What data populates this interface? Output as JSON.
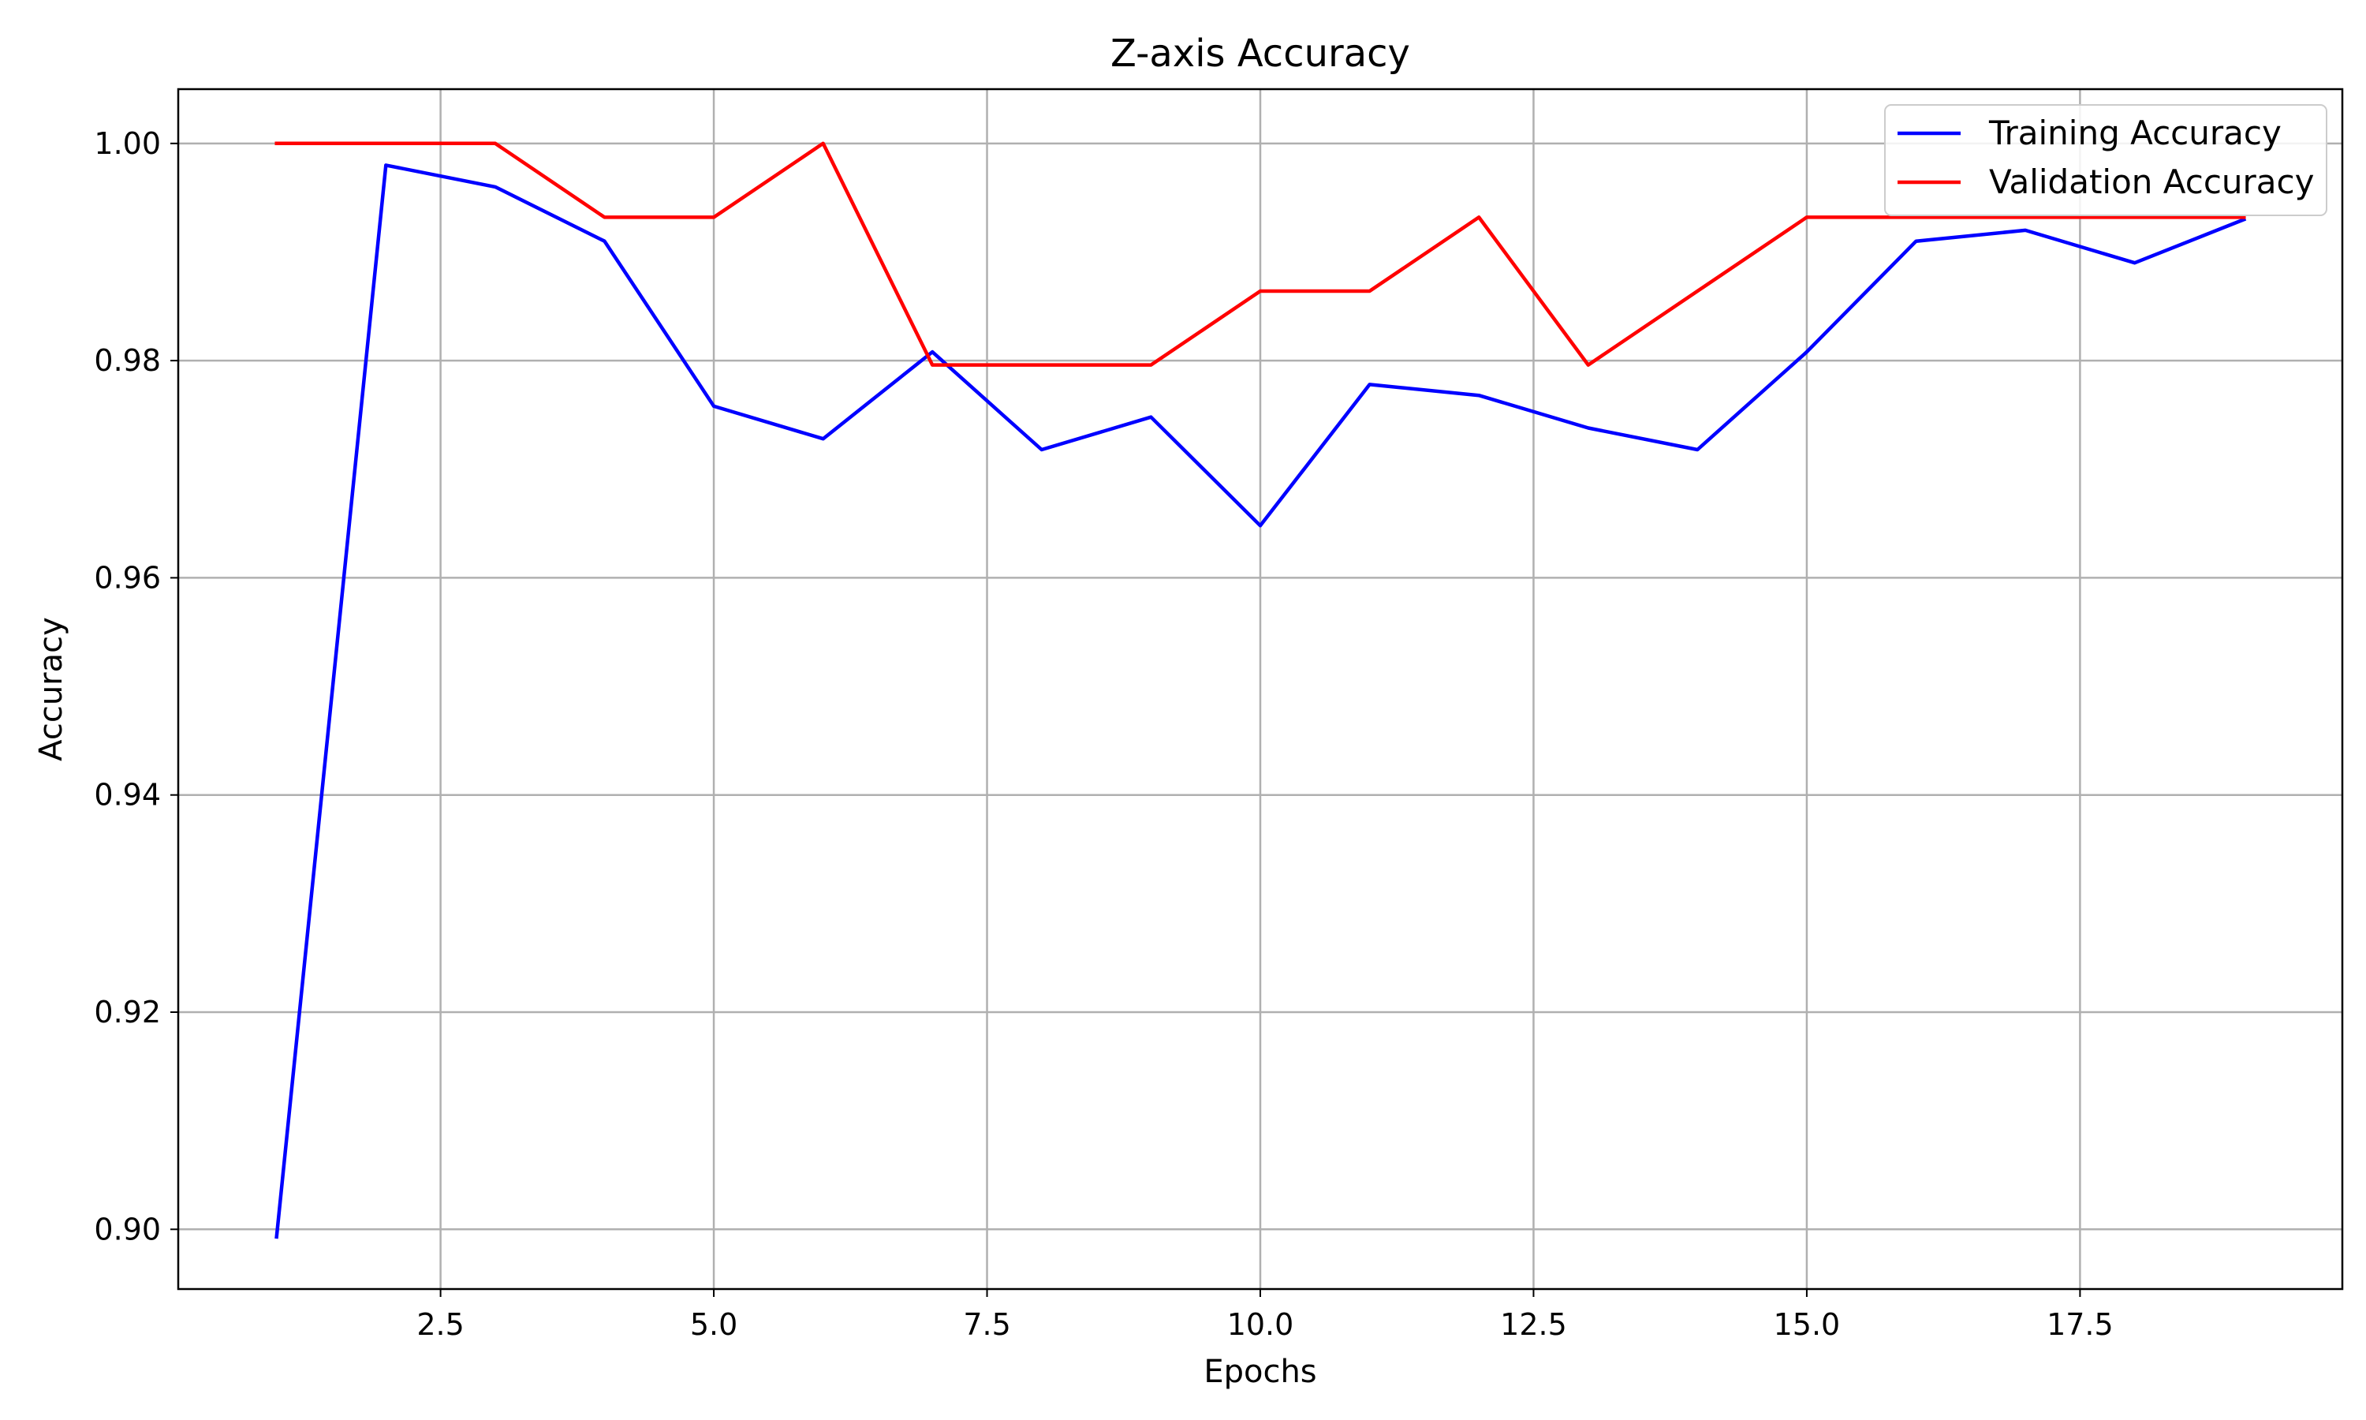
{
  "chart_data": {
    "type": "line",
    "title": "Z-axis Accuracy",
    "xlabel": "Epochs",
    "ylabel": "Accuracy",
    "xlim": [
      0.1,
      19.9
    ],
    "ylim": [
      0.8945,
      1.005
    ],
    "xticks": [
      2.5,
      5.0,
      7.5,
      10.0,
      12.5,
      15.0,
      17.5
    ],
    "xtick_labels": [
      "2.5",
      "5.0",
      "7.5",
      "10.0",
      "12.5",
      "15.0",
      "17.5"
    ],
    "yticks": [
      0.9,
      0.92,
      0.94,
      0.96,
      0.98,
      1.0
    ],
    "ytick_labels": [
      "0.90",
      "0.92",
      "0.94",
      "0.96",
      "0.98",
      "1.00"
    ],
    "grid": true,
    "legend_position": "top-right",
    "x": [
      1,
      2,
      3,
      4,
      5,
      6,
      7,
      8,
      9,
      10,
      11,
      12,
      13,
      14,
      15,
      16,
      17,
      18,
      19
    ],
    "series": [
      {
        "name": "Training Accuracy",
        "color": "#0000ff",
        "values": [
          0.8993,
          0.998,
          0.996,
          0.991,
          0.9758,
          0.9728,
          0.9808,
          0.9718,
          0.9748,
          0.9648,
          0.9778,
          0.9768,
          0.9738,
          0.9718,
          0.9808,
          0.991,
          0.992,
          0.989,
          0.993
        ]
      },
      {
        "name": "Validation Accuracy",
        "color": "#ff0000",
        "values": [
          1.0,
          1.0,
          1.0,
          0.9932,
          0.9932,
          1.0,
          0.9796,
          0.9796,
          0.9796,
          0.9864,
          0.9864,
          0.9932,
          0.9796,
          0.9864,
          0.9932,
          0.9932,
          0.9932,
          0.9932,
          0.9932
        ]
      }
    ]
  }
}
